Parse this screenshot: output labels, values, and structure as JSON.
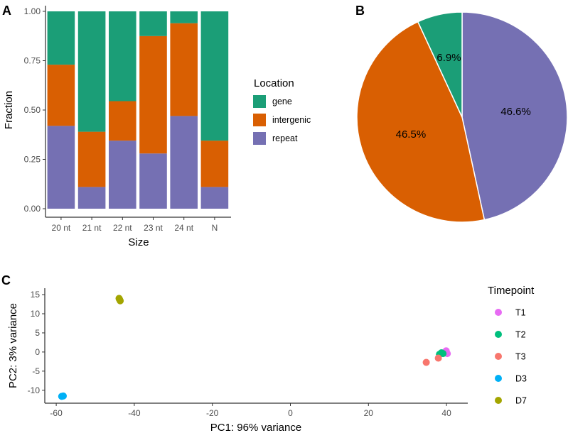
{
  "chart_data": [
    {
      "panel": "A",
      "type": "bar",
      "stacked": true,
      "categories": [
        "20 nt",
        "21 nt",
        "22 nt",
        "23 nt",
        "24 nt",
        "N"
      ],
      "series": [
        {
          "name": "repeat",
          "color": "#7570b3",
          "values": [
            0.42,
            0.11,
            0.345,
            0.28,
            0.47,
            0.11
          ]
        },
        {
          "name": "intergenic",
          "color": "#d95f02",
          "values": [
            0.31,
            0.28,
            0.2,
            0.595,
            0.47,
            0.235
          ]
        },
        {
          "name": "gene",
          "color": "#1b9e77",
          "values": [
            0.27,
            0.61,
            0.455,
            0.125,
            0.06,
            0.655
          ]
        }
      ],
      "xlabel": "Size",
      "ylabel": "Fraction",
      "ylim": [
        0,
        1
      ],
      "yticks": [
        "0.00",
        "0.25",
        "0.50",
        "0.75",
        "1.00"
      ],
      "legend": {
        "title": "Location",
        "items": [
          "gene",
          "intergenic",
          "repeat"
        ],
        "placement": "right"
      }
    },
    {
      "panel": "B",
      "type": "pie",
      "slices": [
        {
          "name": "gene",
          "value": 6.9,
          "label": "6.9%",
          "color": "#1b9e77"
        },
        {
          "name": "repeat",
          "value": 46.6,
          "label": "46.6%",
          "color": "#7570b3"
        },
        {
          "name": "intergenic",
          "value": 46.5,
          "label": "46.5%",
          "color": "#d95f02"
        }
      ]
    },
    {
      "panel": "C",
      "type": "scatter",
      "xlabel": "PC1: 96% variance",
      "ylabel": "PC2: 3% variance",
      "xlim": [
        -62,
        42
      ],
      "ylim": [
        -13,
        16
      ],
      "xticks": [
        "-60",
        "-40",
        "-20",
        "0",
        "20",
        "40"
      ],
      "yticks": [
        "-10",
        "-5",
        "0",
        "5",
        "10",
        "15"
      ],
      "series": [
        {
          "name": "T1",
          "color": "#e76bf3",
          "points": [
            [
              39.9,
              0.3
            ],
            [
              40.2,
              -0.4
            ],
            [
              39.5,
              -0.1
            ]
          ]
        },
        {
          "name": "T2",
          "color": "#00bf7d",
          "points": [
            [
              38.2,
              -0.6
            ],
            [
              39.1,
              -0.4
            ],
            [
              38.7,
              -0.2
            ]
          ]
        },
        {
          "name": "T3",
          "color": "#f8766d",
          "points": [
            [
              34.8,
              -2.7
            ],
            [
              37.9,
              -1.6
            ]
          ]
        },
        {
          "name": "D3",
          "color": "#00b0f6",
          "points": [
            [
              -58.2,
              -11.5
            ],
            [
              -58.6,
              -11.6
            ]
          ]
        },
        {
          "name": "D7",
          "color": "#a3a500",
          "points": [
            [
              -43.9,
              14.0
            ],
            [
              -43.6,
              13.4
            ],
            [
              -43.8,
              13.8
            ]
          ]
        }
      ],
      "legend": {
        "title": "Timepoint",
        "items": [
          "T1",
          "T2",
          "T3",
          "D3",
          "D7"
        ],
        "placement": "right"
      }
    }
  ],
  "panel_labels": {
    "a": "A",
    "b": "B",
    "c": "C"
  }
}
